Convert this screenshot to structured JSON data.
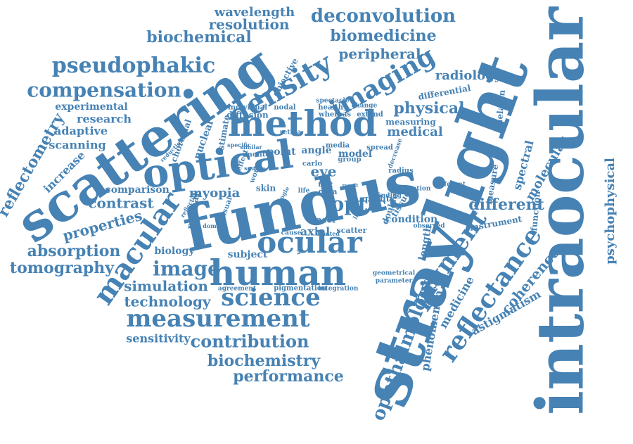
{
  "word_color": "#4682b4",
  "words": [
    {
      "text": "straylight"
    },
    {
      "text": "intraocular"
    },
    {
      "text": "fundus"
    },
    {
      "text": "scattering"
    },
    {
      "text": "optical"
    },
    {
      "text": "method"
    },
    {
      "text": "human"
    },
    {
      "text": "ocular"
    },
    {
      "text": "imaging"
    },
    {
      "text": "density"
    },
    {
      "text": "macular"
    },
    {
      "text": "measurement"
    },
    {
      "text": "science"
    },
    {
      "text": "reflectance"
    },
    {
      "text": "pigment"
    },
    {
      "text": "image"
    },
    {
      "text": "ophthalmology"
    },
    {
      "text": "compensation"
    },
    {
      "text": "pseudophakic"
    },
    {
      "text": "deconvolution"
    },
    {
      "text": "biomedicine"
    },
    {
      "text": "biochemical"
    },
    {
      "text": "resolution"
    },
    {
      "text": "wavelength"
    },
    {
      "text": "peripheral"
    },
    {
      "text": "radiology"
    },
    {
      "text": "physical"
    },
    {
      "text": "medical"
    },
    {
      "text": "reflectometry"
    },
    {
      "text": "adaptive"
    },
    {
      "text": "scanning"
    },
    {
      "text": "research"
    },
    {
      "text": "experimental"
    },
    {
      "text": "increase"
    },
    {
      "text": "contrast"
    },
    {
      "text": "comparison"
    },
    {
      "text": "properties"
    },
    {
      "text": "absorption"
    },
    {
      "text": "tomography"
    },
    {
      "text": "simulation"
    },
    {
      "text": "technology"
    },
    {
      "text": "contribution"
    },
    {
      "text": "sensitivity"
    },
    {
      "text": "biochemistry"
    },
    {
      "text": "performance"
    },
    {
      "text": "myopia"
    },
    {
      "text": "retinal"
    },
    {
      "text": "biology"
    },
    {
      "text": "subject"
    },
    {
      "text": "optic"
    },
    {
      "text": "axial"
    },
    {
      "text": "eye"
    },
    {
      "text": "different"
    },
    {
      "text": "spectral"
    },
    {
      "text": "molecular"
    },
    {
      "text": "psychophysical"
    },
    {
      "text": "coherence"
    },
    {
      "text": "astigmatism"
    },
    {
      "text": "phenomenon"
    },
    {
      "text": "medicine"
    },
    {
      "text": "length"
    },
    {
      "text": "condition"
    },
    {
      "text": "instrument"
    },
    {
      "text": "function"
    },
    {
      "text": "measure"
    },
    {
      "text": "melanin"
    },
    {
      "text": "differential"
    },
    {
      "text": "measuring"
    },
    {
      "text": "objective"
    },
    {
      "text": "point"
    },
    {
      "text": "angle"
    },
    {
      "text": "model"
    },
    {
      "text": "nuclear"
    },
    {
      "text": "choroidal"
    },
    {
      "text": "estimate"
    },
    {
      "text": "diffusion"
    },
    {
      "text": "individual"
    },
    {
      "text": "nodal"
    },
    {
      "text": "monte"
    },
    {
      "text": "carlo"
    },
    {
      "text": "media"
    },
    {
      "text": "healthy"
    },
    {
      "text": "whereas"
    },
    {
      "text": "extend"
    },
    {
      "text": "change"
    },
    {
      "text": "spectacle"
    },
    {
      "text": "retina"
    },
    {
      "text": "spread"
    },
    {
      "text": "decrease"
    },
    {
      "text": "group"
    },
    {
      "text": "radius"
    },
    {
      "text": "location"
    },
    {
      "text": "tissue"
    },
    {
      "text": "quality"
    },
    {
      "text": "double"
    },
    {
      "text": "finding"
    },
    {
      "text": "test"
    },
    {
      "text": "data"
    },
    {
      "text": "laser"
    },
    {
      "text": "scatter"
    },
    {
      "text": "skin"
    },
    {
      "text": "life"
    },
    {
      "text": "effect"
    },
    {
      "text": "similar"
    },
    {
      "text": "work"
    },
    {
      "text": "specific"
    },
    {
      "text": "reduction"
    },
    {
      "text": "agreement"
    },
    {
      "text": "pigmentation"
    },
    {
      "text": "integration"
    },
    {
      "text": "geometrical"
    },
    {
      "text": "parameter"
    },
    {
      "text": "observed"
    },
    {
      "text": "limited"
    },
    {
      "text": "cause"
    },
    {
      "text": "domain"
    },
    {
      "text": "visual"
    },
    {
      "text": "source"
    },
    {
      "text": "reflection"
    },
    {
      "text": "vision"
    },
    {
      "text": "different"
    },
    {
      "text": "light"
    },
    {
      "text": "result"
    },
    {
      "text": "single"
    }
  ]
}
